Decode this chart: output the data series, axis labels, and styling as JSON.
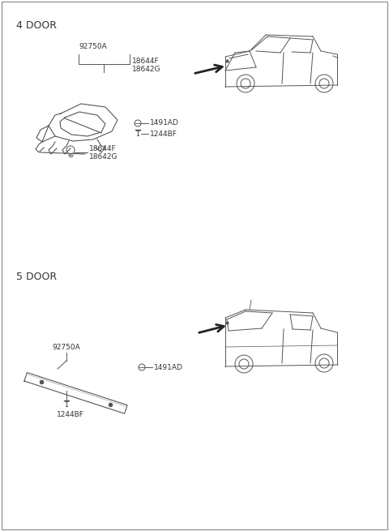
{
  "bg_color": "#ffffff",
  "border_color": "#888888",
  "section_4door_label": "4 DOOR",
  "section_5door_label": "5 DOOR",
  "label_92750A_4": "92750A",
  "label_18644F_4a": "18644F",
  "label_18642G_4a": "18642G",
  "label_1491AD_4": "1491AD",
  "label_1244BF_4": "1244BF",
  "label_18644F_4b": "18644F",
  "label_18642G_4b": "18642G",
  "label_92750A_5": "92750A",
  "label_1491AD_5": "1491AD",
  "label_1244BF_5": "1244BF",
  "line_color": "#555555",
  "text_color": "#333333",
  "font_size_heading": 9,
  "font_size_label": 6.5
}
